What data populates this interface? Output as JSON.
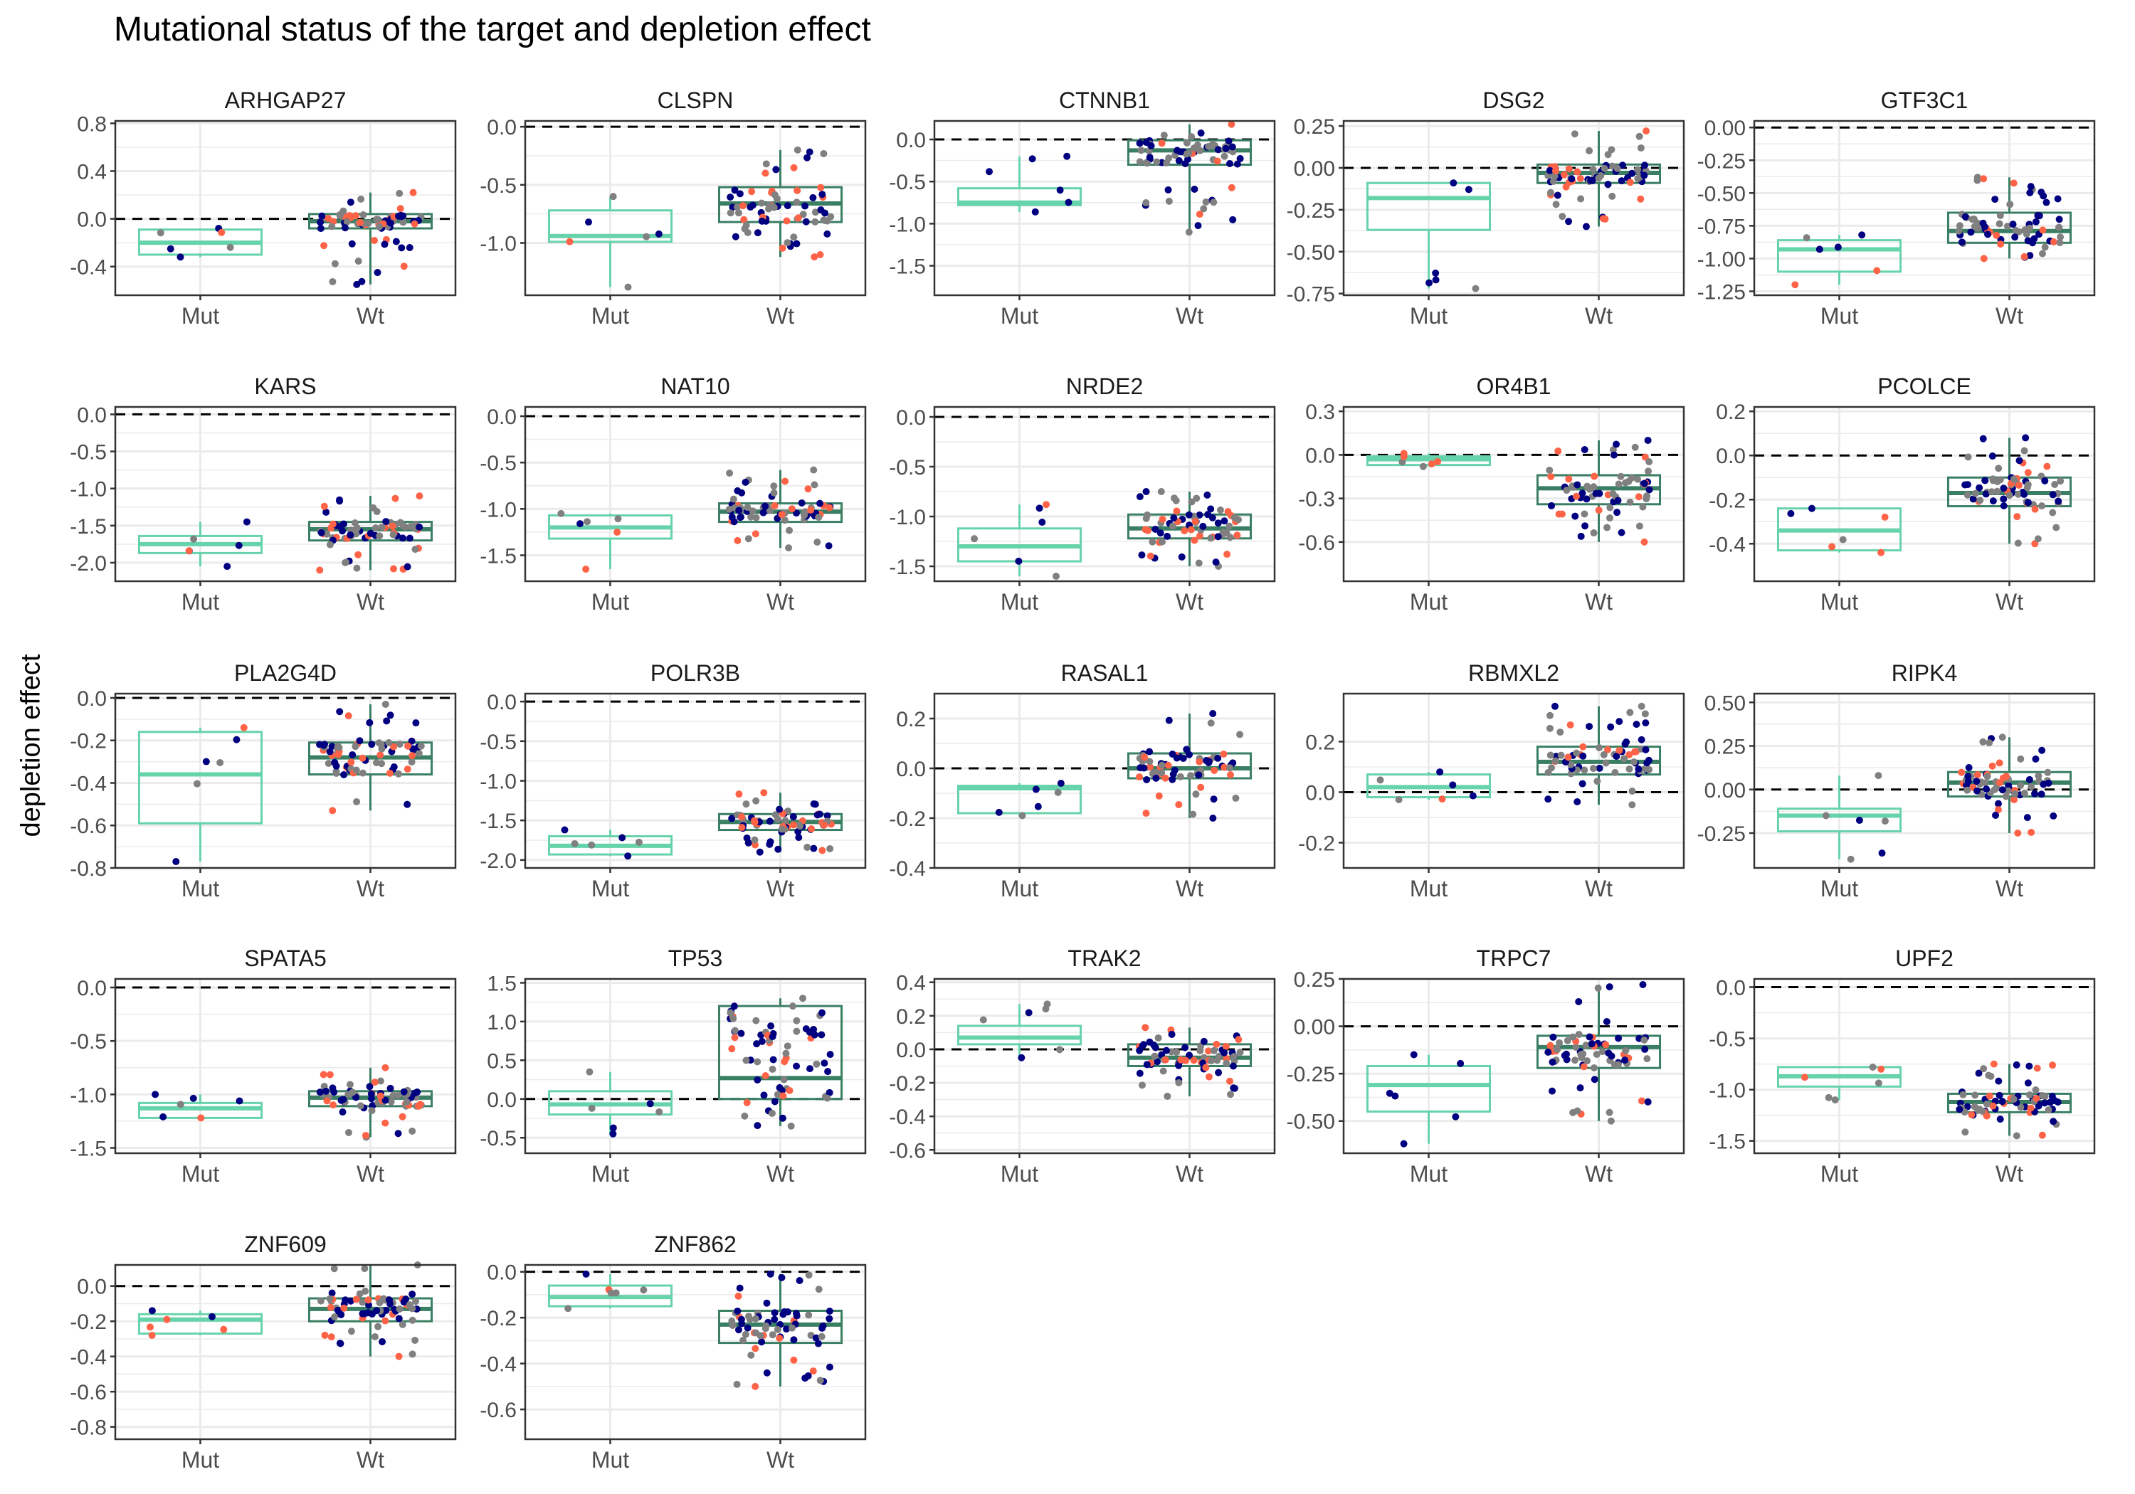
{
  "chart_data": {
    "type": "boxplot",
    "title": "Mutational status of the target and depletion effect",
    "ylabel": "depletion effect",
    "categories": [
      "Mut",
      "Wt"
    ],
    "reference_line": 0,
    "colors": {
      "mut_box": "#66D3AA",
      "wt_box": "#3A7F63",
      "point_grey": "#808080",
      "point_navy": "#000080",
      "point_red": "#FF6347",
      "grid": "#EBEBEB",
      "panel_border": "#333333"
    },
    "panels": [
      {
        "gene": "ARHGAP27",
        "ylim": [
          -0.64,
          0.82
        ],
        "ticks": [
          "0.8",
          "0.4",
          "0.0",
          "-0.4"
        ],
        "mut": {
          "q1": -0.3,
          "median": -0.2,
          "q3": -0.09,
          "wmin": -0.32,
          "wmax": -0.08
        },
        "wt": {
          "q1": -0.08,
          "median": -0.02,
          "q3": 0.04,
          "wmin": -0.55,
          "wmax": 0.22
        }
      },
      {
        "gene": "CLSPN",
        "ylim": [
          -1.45,
          0.05
        ],
        "ticks": [
          "0.0",
          "-0.5",
          "-1.0"
        ],
        "mut": {
          "q1": -0.99,
          "median": -0.94,
          "q3": -0.72,
          "wmin": -1.38,
          "wmax": -0.6
        },
        "wt": {
          "q1": -0.82,
          "median": -0.66,
          "q3": -0.52,
          "wmin": -1.12,
          "wmax": -0.2
        }
      },
      {
        "gene": "CTNNB1",
        "ylim": [
          -1.85,
          0.22
        ],
        "ticks": [
          "0.0",
          "-0.5",
          "-1.0",
          "-1.5"
        ],
        "mut": {
          "q1": -0.78,
          "median": -0.75,
          "q3": -0.58,
          "wmin": -0.86,
          "wmax": -0.2
        },
        "wt": {
          "q1": -0.3,
          "median": -0.13,
          "q3": -0.01,
          "wmin": -1.1,
          "wmax": 0.18
        }
      },
      {
        "gene": "DSG2",
        "ylim": [
          -0.76,
          0.28
        ],
        "ticks": [
          "0.25",
          "0.00",
          "-0.25",
          "-0.50",
          "-0.75"
        ],
        "mut": {
          "q1": -0.37,
          "median": -0.18,
          "q3": -0.09,
          "wmin": -0.72,
          "wmax": -0.09
        },
        "wt": {
          "q1": -0.09,
          "median": -0.03,
          "q3": 0.02,
          "wmin": -0.35,
          "wmax": 0.22
        }
      },
      {
        "gene": "GTF3C1",
        "ylim": [
          -1.28,
          0.05
        ],
        "ticks": [
          "0.00",
          "-0.25",
          "-0.50",
          "-0.75",
          "-1.00",
          "-1.25"
        ],
        "mut": {
          "q1": -1.1,
          "median": -0.93,
          "q3": -0.86,
          "wmin": -1.2,
          "wmax": -0.82
        },
        "wt": {
          "q1": -0.88,
          "median": -0.79,
          "q3": -0.65,
          "wmin": -1.0,
          "wmax": -0.38
        }
      },
      {
        "gene": "KARS",
        "ylim": [
          -2.25,
          0.1
        ],
        "ticks": [
          "0.0",
          "-0.5",
          "-1.0",
          "-1.5",
          "-2.0"
        ],
        "mut": {
          "q1": -1.87,
          "median": -1.75,
          "q3": -1.64,
          "wmin": -2.05,
          "wmax": -1.45
        },
        "wt": {
          "q1": -1.7,
          "median": -1.55,
          "q3": -1.45,
          "wmin": -2.1,
          "wmax": -1.1
        }
      },
      {
        "gene": "NAT10",
        "ylim": [
          -1.78,
          0.1
        ],
        "ticks": [
          "0.0",
          "-0.5",
          "-1.0",
          "-1.5"
        ],
        "mut": {
          "q1": -1.32,
          "median": -1.2,
          "q3": -1.07,
          "wmin": -1.65,
          "wmax": -1.05
        },
        "wt": {
          "q1": -1.14,
          "median": -1.03,
          "q3": -0.94,
          "wmin": -1.42,
          "wmax": -0.58
        }
      },
      {
        "gene": "NRDE2",
        "ylim": [
          -1.65,
          0.1
        ],
        "ticks": [
          "0.0",
          "-0.5",
          "-1.0",
          "-1.5"
        ],
        "mut": {
          "q1": -1.45,
          "median": -1.3,
          "q3": -1.12,
          "wmin": -1.6,
          "wmax": -0.88
        },
        "wt": {
          "q1": -1.22,
          "median": -1.12,
          "q3": -0.98,
          "wmin": -1.5,
          "wmax": -0.75
        }
      },
      {
        "gene": "OR4B1",
        "ylim": [
          -0.87,
          0.33
        ],
        "ticks": [
          "0.3",
          "0.0",
          "-0.3",
          "-0.6"
        ],
        "mut": {
          "q1": -0.07,
          "median": -0.03,
          "q3": -0.01,
          "wmin": -0.08,
          "wmax": 0.01
        },
        "wt": {
          "q1": -0.34,
          "median": -0.23,
          "q3": -0.14,
          "wmin": -0.6,
          "wmax": 0.1
        }
      },
      {
        "gene": "PCOLCE",
        "ylim": [
          -0.57,
          0.22
        ],
        "ticks": [
          "0.2",
          "0.0",
          "-0.2",
          "-0.4"
        ],
        "mut": {
          "q1": -0.43,
          "median": -0.34,
          "q3": -0.24,
          "wmin": -0.44,
          "wmax": -0.24
        },
        "wt": {
          "q1": -0.23,
          "median": -0.17,
          "q3": -0.1,
          "wmin": -0.4,
          "wmax": 0.08
        }
      },
      {
        "gene": "PLA2G4D",
        "ylim": [
          -0.8,
          0.02
        ],
        "ticks": [
          "0.0",
          "-0.2",
          "-0.4",
          "-0.6",
          "-0.8"
        ],
        "mut": {
          "q1": -0.59,
          "median": -0.36,
          "q3": -0.16,
          "wmin": -0.77,
          "wmax": -0.14
        },
        "wt": {
          "q1": -0.36,
          "median": -0.28,
          "q3": -0.21,
          "wmin": -0.53,
          "wmax": -0.03
        }
      },
      {
        "gene": "POLR3B",
        "ylim": [
          -2.1,
          0.1
        ],
        "ticks": [
          "0.0",
          "-0.5",
          "-1.0",
          "-1.5",
          "-2.0"
        ],
        "mut": {
          "q1": -1.93,
          "median": -1.82,
          "q3": -1.7,
          "wmin": -1.95,
          "wmax": -1.62
        },
        "wt": {
          "q1": -1.62,
          "median": -1.52,
          "q3": -1.42,
          "wmin": -1.9,
          "wmax": -1.15
        }
      },
      {
        "gene": "RASAL1",
        "ylim": [
          -0.4,
          0.3
        ],
        "ticks": [
          "0.2",
          "0.0",
          "-0.2",
          "-0.4"
        ],
        "mut": {
          "q1": -0.18,
          "median": -0.08,
          "q3": -0.07,
          "wmin": -0.19,
          "wmax": -0.06
        },
        "wt": {
          "q1": -0.04,
          "median": 0.0,
          "q3": 0.06,
          "wmin": -0.2,
          "wmax": 0.22
        }
      },
      {
        "gene": "RBMXL2",
        "ylim": [
          -0.3,
          0.39
        ],
        "ticks": [
          "0.2",
          "0.0",
          "-0.2"
        ],
        "mut": {
          "q1": -0.02,
          "median": 0.02,
          "q3": 0.07,
          "wmin": -0.03,
          "wmax": 0.08
        },
        "wt": {
          "q1": 0.07,
          "median": 0.12,
          "q3": 0.18,
          "wmin": -0.05,
          "wmax": 0.34
        }
      },
      {
        "gene": "RIPK4",
        "ylim": [
          -0.45,
          0.55
        ],
        "ticks": [
          "0.50",
          "0.25",
          "0.00",
          "-0.25"
        ],
        "mut": {
          "q1": -0.24,
          "median": -0.15,
          "q3": -0.11,
          "wmin": -0.4,
          "wmax": 0.08
        },
        "wt": {
          "q1": -0.04,
          "median": 0.04,
          "q3": 0.1,
          "wmin": -0.25,
          "wmax": 0.3
        }
      },
      {
        "gene": "SPATA5",
        "ylim": [
          -1.55,
          0.08
        ],
        "ticks": [
          "0.0",
          "-0.5",
          "-1.0",
          "-1.5"
        ],
        "mut": {
          "q1": -1.22,
          "median": -1.13,
          "q3": -1.08,
          "wmin": -1.22,
          "wmax": -1.0
        },
        "wt": {
          "q1": -1.11,
          "median": -1.03,
          "q3": -0.97,
          "wmin": -1.4,
          "wmax": -0.75
        }
      },
      {
        "gene": "TP53",
        "ylim": [
          -0.7,
          1.55
        ],
        "ticks": [
          "1.5",
          "1.0",
          "0.5",
          "0.0",
          "-0.5"
        ],
        "mut": {
          "q1": -0.2,
          "median": -0.07,
          "q3": 0.1,
          "wmin": -0.45,
          "wmax": 0.35
        },
        "wt": {
          "q1": 0.0,
          "median": 0.27,
          "q3": 1.2,
          "wmin": -0.35,
          "wmax": 1.3
        }
      },
      {
        "gene": "TRAK2",
        "ylim": [
          -0.62,
          0.42
        ],
        "ticks": [
          "0.4",
          "0.2",
          "0.0",
          "-0.2",
          "-0.4",
          "-0.6"
        ],
        "mut": {
          "q1": 0.03,
          "median": 0.07,
          "q3": 0.14,
          "wmin": -0.05,
          "wmax": 0.27
        },
        "wt": {
          "q1": -0.1,
          "median": -0.05,
          "q3": 0.03,
          "wmin": -0.28,
          "wmax": 0.13
        }
      },
      {
        "gene": "TRPC7",
        "ylim": [
          -0.67,
          0.25
        ],
        "ticks": [
          "0.25",
          "0.00",
          "-0.25",
          "-0.50"
        ],
        "mut": {
          "q1": -0.45,
          "median": -0.31,
          "q3": -0.21,
          "wmin": -0.62,
          "wmax": -0.15
        },
        "wt": {
          "q1": -0.22,
          "median": -0.11,
          "q3": -0.05,
          "wmin": -0.5,
          "wmax": 0.22
        }
      },
      {
        "gene": "UPF2",
        "ylim": [
          -1.62,
          0.08
        ],
        "ticks": [
          "0.0",
          "-0.5",
          "-1.0",
          "-1.5"
        ],
        "mut": {
          "q1": -0.97,
          "median": -0.87,
          "q3": -0.78,
          "wmin": -1.1,
          "wmax": -0.78
        },
        "wt": {
          "q1": -1.22,
          "median": -1.12,
          "q3": -1.04,
          "wmin": -1.45,
          "wmax": -0.75
        }
      },
      {
        "gene": "ZNF609",
        "ylim": [
          -0.87,
          0.12
        ],
        "ticks": [
          "0.0",
          "-0.2",
          "-0.4",
          "-0.6",
          "-0.8"
        ],
        "mut": {
          "q1": -0.27,
          "median": -0.19,
          "q3": -0.16,
          "wmin": -0.28,
          "wmax": -0.14
        },
        "wt": {
          "q1": -0.2,
          "median": -0.13,
          "q3": -0.07,
          "wmin": -0.4,
          "wmax": 0.12
        }
      },
      {
        "gene": "ZNF862",
        "ylim": [
          -0.73,
          0.03
        ],
        "ticks": [
          "0.0",
          "-0.2",
          "-0.4",
          "-0.6"
        ],
        "mut": {
          "q1": -0.15,
          "median": -0.11,
          "q3": -0.06,
          "wmin": -0.16,
          "wmax": -0.01
        },
        "wt": {
          "q1": -0.31,
          "median": -0.23,
          "q3": -0.17,
          "wmin": -0.5,
          "wmax": -0.01
        }
      }
    ]
  }
}
